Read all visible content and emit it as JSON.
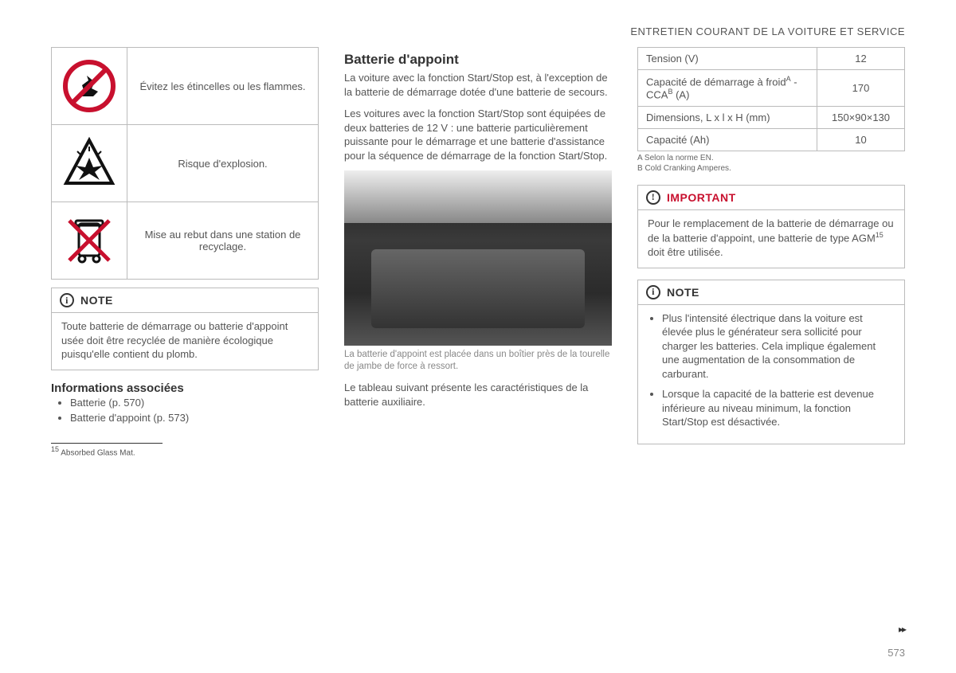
{
  "header": "ENTRETIEN COURANT DE LA VOITURE ET SERVICE",
  "page_number": "573",
  "colors": {
    "accent_red": "#c8102e",
    "text_gray": "#555555",
    "border_gray": "#bbbbbb"
  },
  "col1": {
    "warnings": [
      {
        "icon": "no-flame",
        "text": "Évitez les étincelles ou les flammes."
      },
      {
        "icon": "explosion",
        "text": "Risque d'explosion."
      },
      {
        "icon": "recycle-bin",
        "text": "Mise au rebut dans une station de recyclage."
      }
    ],
    "note": {
      "title": "NOTE",
      "body": "Toute batterie de démarrage ou batterie d'appoint usée doit être recyclée de manière écologique puisqu'elle contient du plomb."
    },
    "assoc_heading": "Informations associées",
    "assoc_items": [
      "Batterie (p. 570)",
      "Batterie d'appoint (p. 573)"
    ]
  },
  "col2": {
    "heading": "Batterie d'appoint",
    "intro": "La voiture avec la fonction Start/Stop est, à l'exception de la batterie de démarrage dotée d'une batterie de secours.",
    "para": "Les voitures avec la fonction Start/Stop sont équipées de deux batteries de 12 V : une batterie particulièrement puissante pour le démarrage et une batterie d'assistance pour la séquence de démarrage de la fonction Start/Stop.",
    "caption": "La batterie d'appoint est placée dans un boîtier près de la tourelle de jambe de force à ressort.",
    "outro": "Le tableau suivant présente les caractéristiques de la batterie auxiliaire."
  },
  "col3": {
    "spec_rows": [
      {
        "label": "Tension (V)",
        "value": "12"
      },
      {
        "label_html": "Capacité de démarrage à froid<span class='sup'>A</span> - CCA<span class='sup'>B</span> (A)",
        "value": "170"
      },
      {
        "label": "Dimensions, L x l x H (mm)",
        "value": "150×90×130"
      },
      {
        "label": "Capacité (Ah)",
        "value": "10"
      }
    ],
    "table_notes": [
      "A Selon la norme EN.",
      "B Cold Cranking Amperes."
    ],
    "important": {
      "title": "IMPORTANT",
      "body_html": "Pour le remplacement de la batterie de démarrage ou de la batterie d'appoint, une batterie de type AGM<span class='sup'>15</span> doit être utilisée."
    },
    "note": {
      "title": "NOTE",
      "bullets": [
        "Plus l'intensité électrique dans la voiture est élevée plus le générateur sera sollicité pour charger les batteries. Cela implique également une augmentation de la consommation de carburant.",
        "Lorsque la capacité de la batterie est devenue inférieure au niveau minimum, la fonction Start/Stop est désactivée."
      ]
    }
  },
  "footnote": {
    "marker": "15",
    "text": "Absorbed Glass Mat."
  }
}
